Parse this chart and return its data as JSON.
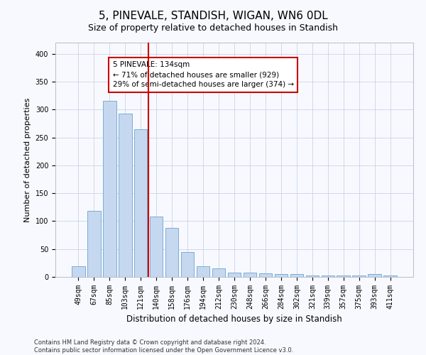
{
  "title": "5, PINEVALE, STANDISH, WIGAN, WN6 0DL",
  "subtitle": "Size of property relative to detached houses in Standish",
  "xlabel": "Distribution of detached houses by size in Standish",
  "ylabel": "Number of detached properties",
  "categories": [
    "49sqm",
    "67sqm",
    "85sqm",
    "103sqm",
    "121sqm",
    "140sqm",
    "158sqm",
    "176sqm",
    "194sqm",
    "212sqm",
    "230sqm",
    "248sqm",
    "266sqm",
    "284sqm",
    "302sqm",
    "321sqm",
    "339sqm",
    "357sqm",
    "375sqm",
    "393sqm",
    "411sqm"
  ],
  "values": [
    19,
    119,
    315,
    293,
    265,
    108,
    88,
    44,
    19,
    15,
    8,
    8,
    7,
    5,
    5,
    3,
    2,
    2,
    2,
    5,
    3
  ],
  "bar_color": "#c5d8f0",
  "bar_edge_color": "#7aadd4",
  "vline_index": 4.5,
  "vline_color": "#cc0000",
  "annotation_text": "5 PINEVALE: 134sqm\n← 71% of detached houses are smaller (929)\n29% of semi-detached houses are larger (374) →",
  "annotation_box_color": "#ffffff",
  "annotation_box_edge": "#cc0000",
  "ylim": [
    0,
    420
  ],
  "yticks": [
    0,
    50,
    100,
    150,
    200,
    250,
    300,
    350,
    400
  ],
  "footer": "Contains HM Land Registry data © Crown copyright and database right 2024.\nContains public sector information licensed under the Open Government Licence v3.0.",
  "bg_color": "#f8f9fe",
  "grid_color": "#c8d4e8",
  "title_fontsize": 11,
  "subtitle_fontsize": 9,
  "xlabel_fontsize": 8.5,
  "ylabel_fontsize": 8,
  "tick_fontsize": 7,
  "footer_fontsize": 6,
  "annot_fontsize": 7.5
}
